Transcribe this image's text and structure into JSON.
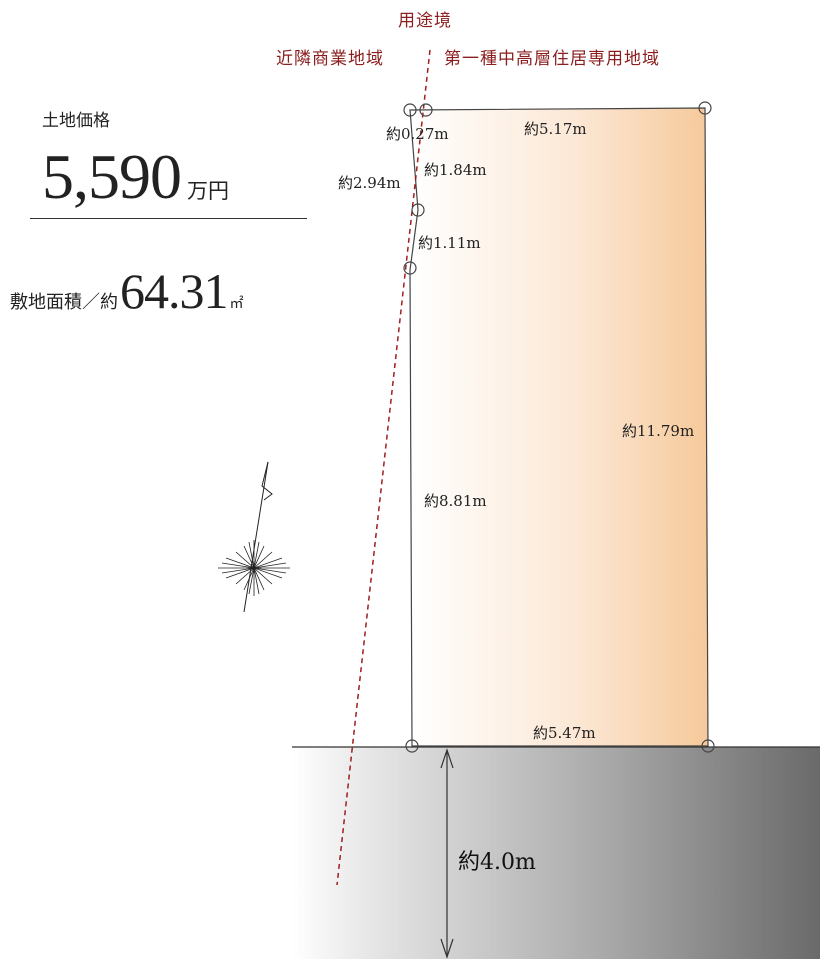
{
  "zone": {
    "boundary_label": "用途境",
    "left_zone": "近隣商業地域",
    "right_zone": "第一種中高層住居専用地域"
  },
  "price": {
    "label": "土地価格",
    "value": "5,590",
    "unit": "万円"
  },
  "area": {
    "label": "敷地面積／約",
    "value": "64.31",
    "unit": "㎡"
  },
  "dimensions": {
    "top_left_offset": "約0.27m",
    "top_width": "約5.17m",
    "left_upper": "約2.94m",
    "left_segment_1": "約1.84m",
    "left_segment_2": "約1.11m",
    "left_lower": "約8.81m",
    "right_side": "約11.79m",
    "bottom_width": "約5.47m",
    "road_width": "約4.0m"
  },
  "colors": {
    "zone_text": "#8b1e1e",
    "boundary_line": "#a01e1e",
    "lot_fill_light": "#fff7f0",
    "lot_fill_dark": "#f7d0a8",
    "road_light": "#ffffff",
    "road_dark": "#6b6b6b"
  }
}
